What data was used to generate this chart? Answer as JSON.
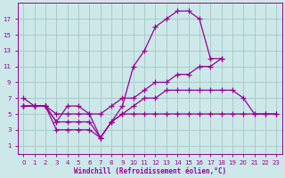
{
  "background_color": "#cce8e8",
  "grid_color": "#aacccc",
  "line_color": "#990099",
  "xlabel": "Windchill (Refroidissement éolien,°C)",
  "xlim": [
    -0.5,
    23.5
  ],
  "ylim": [
    0,
    19
  ],
  "xticks": [
    0,
    1,
    2,
    3,
    4,
    5,
    6,
    7,
    8,
    9,
    10,
    11,
    12,
    13,
    14,
    15,
    16,
    17,
    18,
    19,
    20,
    21,
    22,
    23
  ],
  "yticks": [
    1,
    3,
    5,
    7,
    9,
    11,
    13,
    15,
    17
  ],
  "series": [
    {
      "x": [
        0,
        1,
        2,
        3,
        4,
        5,
        6,
        7,
        8,
        9,
        10,
        11,
        12,
        13,
        14,
        15,
        16,
        17,
        18
      ],
      "y": [
        7,
        6,
        6,
        4,
        6,
        6,
        5,
        2,
        4,
        6,
        11,
        13,
        16,
        17,
        18,
        18,
        17,
        12,
        12
      ]
    },
    {
      "x": [
        0,
        1,
        2,
        3,
        4,
        5,
        6,
        7,
        8,
        9,
        10,
        11,
        12,
        13,
        14,
        15,
        16,
        17,
        18
      ],
      "y": [
        6,
        6,
        6,
        5,
        5,
        5,
        5,
        5,
        6,
        7,
        7,
        8,
        9,
        9,
        10,
        10,
        11,
        11,
        12
      ]
    },
    {
      "x": [
        0,
        1,
        2,
        3,
        4,
        5,
        6,
        7,
        8,
        9,
        10,
        11,
        12,
        13,
        14,
        15,
        16,
        17,
        18,
        19,
        20,
        21,
        22,
        23
      ],
      "y": [
        6,
        6,
        6,
        3,
        3,
        3,
        3,
        2,
        4,
        5,
        6,
        7,
        7,
        8,
        8,
        8,
        8,
        8,
        8,
        8,
        7,
        5,
        5,
        5
      ]
    },
    {
      "x": [
        0,
        1,
        2,
        3,
        4,
        5,
        6,
        7,
        8,
        9,
        10,
        11,
        12,
        13,
        14,
        15,
        16,
        17,
        18,
        19,
        20,
        21,
        22,
        23
      ],
      "y": [
        6,
        6,
        6,
        4,
        4,
        4,
        4,
        2,
        4,
        5,
        5,
        5,
        5,
        5,
        5,
        5,
        5,
        5,
        5,
        5,
        5,
        5,
        5,
        5
      ]
    }
  ]
}
